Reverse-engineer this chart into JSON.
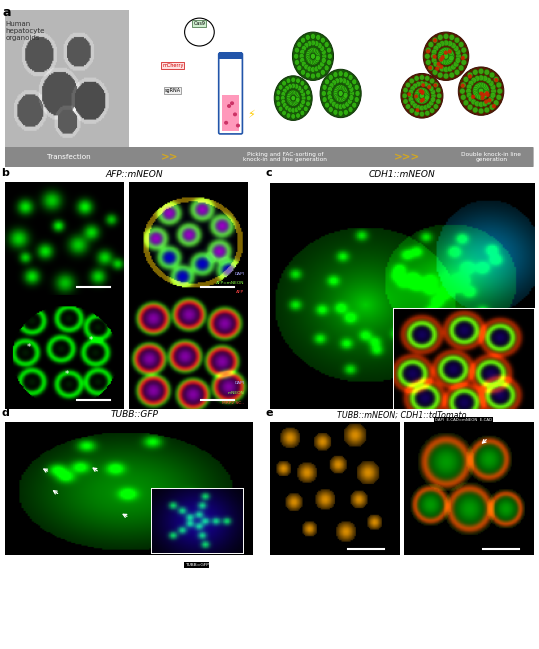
{
  "panel_a_label": "a",
  "panel_b_label": "b",
  "panel_c_label": "c",
  "panel_d_label": "d",
  "panel_e_label": "e",
  "title_b": "AFP::mNEON",
  "title_c": "CDH1::mNEON",
  "title_d": "TUBB::GFP",
  "title_e": "TUBB::mNEON; CDH1::tdTomato",
  "workflow_text1": "Transfection",
  "workflow_arrows1": ">>",
  "workflow_text2": "Picking and FAC-sorting of\nknock-in and line generation",
  "workflow_arrows2": ">>>",
  "workflow_text3": "Double knock-in line\ngeneration",
  "workflow_bg": "#888888",
  "workflow_arrow_color": "#d4a820",
  "bg_color": "#ffffff",
  "panel_label_color": "#000000"
}
